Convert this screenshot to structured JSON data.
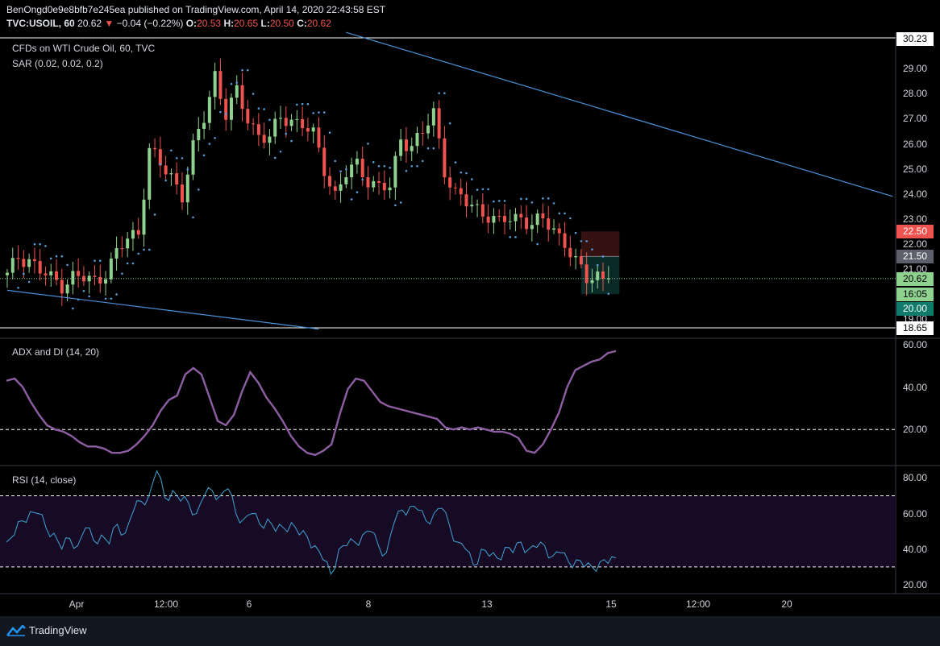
{
  "header": {
    "line1": "BenOngd0e9e8bfb7e245ea published on TradingView.com, April 14, 2020 22:43:58 EST",
    "symbol": "TVC:USOIL, 60",
    "last": "20.62",
    "change": "−0.04 (−0.22%)",
    "o_label": "O:",
    "o": "20.53",
    "h_label": "H:",
    "h": "20.65",
    "l_label": "L:",
    "l": "20.50",
    "c_label": "C:",
    "c": "20.62"
  },
  "panes": {
    "main_title": "CFDs on WTI Crude Oil, 60, TVC",
    "sar_label": "SAR (0.02, 0.02, 0.2)",
    "adx_label": "ADX and DI (14, 20)",
    "rsi_label": "RSI (14, close)"
  },
  "price_tags": {
    "high": "30.23",
    "red": "22.50",
    "gray": "21.50",
    "last": "20.62",
    "countdown": "16:05",
    "teal": "20.00",
    "low": "18.65"
  },
  "footer": {
    "brand": "TradingView"
  },
  "colors": {
    "background": "#000000",
    "up": "#8fd18f",
    "down": "#ef5350",
    "sar": "#5b9bd5",
    "trendline": "#4a90d9",
    "adx": "#8e5ea2",
    "rsi": "#42a5d5",
    "rsi_band": "#160a24"
  },
  "chart_data": [
    {
      "type": "candlestick",
      "title": "CFDs on WTI Crude Oil, 60, TVC",
      "x_ticks": [
        "Apr",
        "12:00",
        "6",
        "8",
        "13",
        "15",
        "12:00",
        "20"
      ],
      "y_ticks": [
        19.0,
        21.0,
        22.0,
        23.0,
        24.0,
        25.0,
        26.0,
        27.0,
        28.0,
        29.0
      ],
      "ylim": [
        18.65,
        30.23
      ],
      "last_price": 20.62,
      "position_box": {
        "stop": 22.5,
        "entry": 21.5,
        "target": 20.0
      },
      "close_path": [
        [
          0,
          20.7
        ],
        [
          2,
          21.5
        ],
        [
          4,
          21.4
        ],
        [
          6,
          20.9
        ],
        [
          8,
          20.6
        ],
        [
          10,
          20.4
        ],
        [
          12,
          20.7
        ],
        [
          14,
          20.6
        ],
        [
          16,
          20.5
        ],
        [
          18,
          20.9
        ],
        [
          20,
          21.6
        ],
        [
          22,
          22.2
        ],
        [
          24,
          22.5
        ],
        [
          26,
          25.8
        ],
        [
          28,
          25.1
        ],
        [
          30,
          24.7
        ],
        [
          32,
          24.0
        ],
        [
          34,
          25.8
        ],
        [
          36,
          27.0
        ],
        [
          38,
          28.8
        ],
        [
          40,
          27.2
        ],
        [
          42,
          28.0
        ],
        [
          44,
          27.0
        ],
        [
          46,
          26.4
        ],
        [
          48,
          26.2
        ],
        [
          50,
          27.0
        ],
        [
          52,
          27.0
        ],
        [
          54,
          26.8
        ],
        [
          56,
          26.3
        ],
        [
          58,
          25.0
        ],
        [
          60,
          24.0
        ],
        [
          62,
          24.8
        ],
        [
          64,
          25.1
        ],
        [
          66,
          24.6
        ],
        [
          68,
          24.3
        ],
        [
          70,
          24.2
        ],
        [
          72,
          26.2
        ],
        [
          74,
          26.0
        ],
        [
          76,
          26.4
        ],
        [
          78,
          27.2
        ],
        [
          80,
          25.0
        ],
        [
          82,
          24.0
        ],
        [
          84,
          23.6
        ],
        [
          86,
          23.4
        ],
        [
          88,
          23.2
        ],
        [
          90,
          22.8
        ],
        [
          92,
          23.0
        ],
        [
          94,
          23.1
        ],
        [
          96,
          22.8
        ],
        [
          98,
          22.9
        ],
        [
          100,
          22.6
        ],
        [
          102,
          22.1
        ],
        [
          104,
          21.2
        ],
        [
          106,
          20.6
        ],
        [
          108,
          20.8
        ],
        [
          110,
          20.62
        ]
      ],
      "trendlines": [
        {
          "from": [
            62,
            30.45
          ],
          "to": [
            162,
            23.9
          ]
        },
        {
          "from": [
            0,
            20.15
          ],
          "to": [
            57,
            18.6
          ]
        }
      ]
    },
    {
      "type": "line",
      "title": "ADX and DI (14, 20)",
      "y_ticks": [
        20.0,
        40.0,
        60.0
      ],
      "ylim": [
        3,
        63
      ],
      "reference_line": 20,
      "series": [
        {
          "name": "ADX",
          "values": [
            43,
            44,
            40,
            33,
            27,
            22,
            20,
            19,
            17,
            14,
            12,
            12,
            11,
            9,
            9,
            10,
            13,
            17,
            22,
            29,
            34,
            36,
            46,
            49,
            46,
            35,
            24,
            22,
            27,
            38,
            47,
            42,
            35,
            30,
            24,
            17,
            12,
            9,
            8,
            10,
            13,
            27,
            39,
            44,
            43,
            38,
            33,
            31,
            30,
            29,
            28,
            27,
            26,
            25,
            21,
            20,
            21,
            20,
            21,
            20,
            19,
            19,
            18,
            16,
            10,
            9,
            13,
            20,
            28,
            40,
            48,
            50,
            52,
            53,
            56,
            57
          ]
        }
      ]
    },
    {
      "type": "line",
      "title": "RSI (14, close)",
      "y_ticks": [
        20.0,
        40.0,
        60.0,
        80.0
      ],
      "ylim": [
        15,
        87
      ],
      "band": [
        30,
        70
      ],
      "series": [
        {
          "name": "RSI",
          "values": [
            44,
            48,
            56,
            61,
            60,
            52,
            49,
            40,
            46,
            42,
            52,
            45,
            48,
            43,
            54,
            49,
            61,
            67,
            70,
            84,
            69,
            73,
            67,
            66,
            60,
            70,
            73,
            70,
            74,
            60,
            57,
            60,
            54,
            57,
            50,
            52,
            55,
            48,
            47,
            42,
            34,
            26,
            40,
            42,
            44,
            48,
            50,
            42,
            38,
            55,
            62,
            64,
            62,
            56,
            60,
            63,
            53,
            44,
            40,
            31,
            40,
            36,
            35,
            41,
            38,
            44,
            40,
            41,
            42,
            36,
            38,
            33,
            34,
            30,
            30,
            33,
            32,
            35
          ]
        }
      ]
    }
  ]
}
